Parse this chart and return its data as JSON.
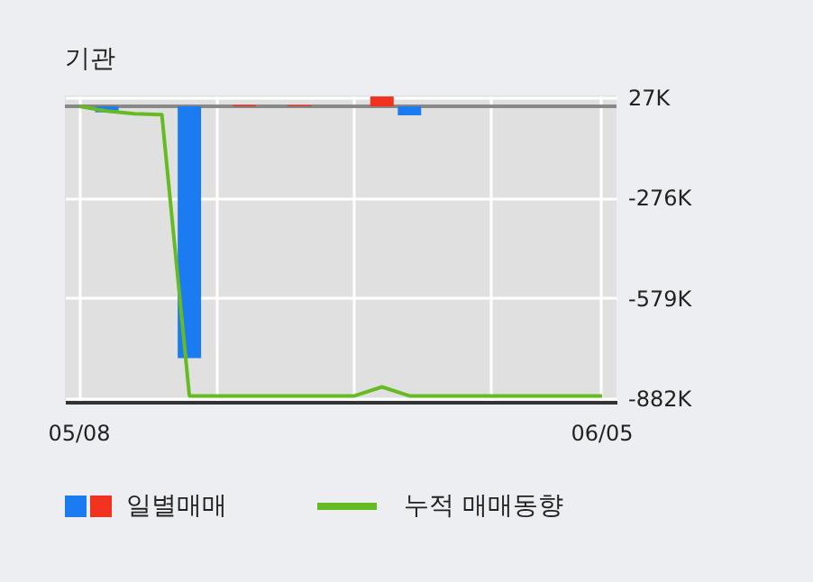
{
  "chart_data": {
    "type": "bar",
    "title": "기관",
    "categories": [
      "05/08",
      null,
      null,
      null,
      null,
      null,
      null,
      null,
      null,
      null,
      null,
      null,
      null,
      null,
      null,
      null,
      null,
      null,
      null,
      "06/05"
    ],
    "series": [
      {
        "name": "일별매매",
        "values": [
          null,
          -18000,
          null,
          null,
          -761000,
          null,
          4000,
          null,
          4000,
          null,
          null,
          30000,
          -27000,
          null,
          null,
          null,
          null,
          null,
          null,
          null
        ],
        "colors": [
          "#1a7cf0",
          "#1a7cf0",
          "#1a7cf0",
          "#1a7cf0",
          "#1a7cf0",
          "#1a7cf0",
          "#f0321e",
          "#1a7cf0",
          "#f0321e",
          "#1a7cf0",
          "#1a7cf0",
          "#f0321e",
          "#1a7cf0",
          "#1a7cf0",
          "#1a7cf0",
          "#1a7cf0",
          "#1a7cf0",
          "#1a7cf0",
          "#1a7cf0",
          "#1a7cf0"
        ]
      },
      {
        "type": "line",
        "name": "누적 매매동향",
        "color": "#66bb22",
        "values": [
          0,
          -14000,
          -22000,
          -25000,
          -875000,
          -875000,
          -875000,
          -875000,
          -875000,
          -875000,
          -875000,
          -848000,
          -875000,
          -875000,
          -875000,
          -875000,
          -875000,
          -875000,
          -875000,
          -875000
        ]
      }
    ],
    "ylim": [
      -893000,
      33000
    ],
    "yticks": [
      {
        "value": 27000,
        "label": "27K"
      },
      {
        "value": -276000,
        "label": "-276K"
      },
      {
        "value": -579000,
        "label": "-579K"
      },
      {
        "value": -882000,
        "label": "-882K"
      }
    ],
    "ref_lines": [
      {
        "axis": "y",
        "value": 0,
        "color": "#888888"
      }
    ],
    "grid": true,
    "legend": "bottom"
  }
}
